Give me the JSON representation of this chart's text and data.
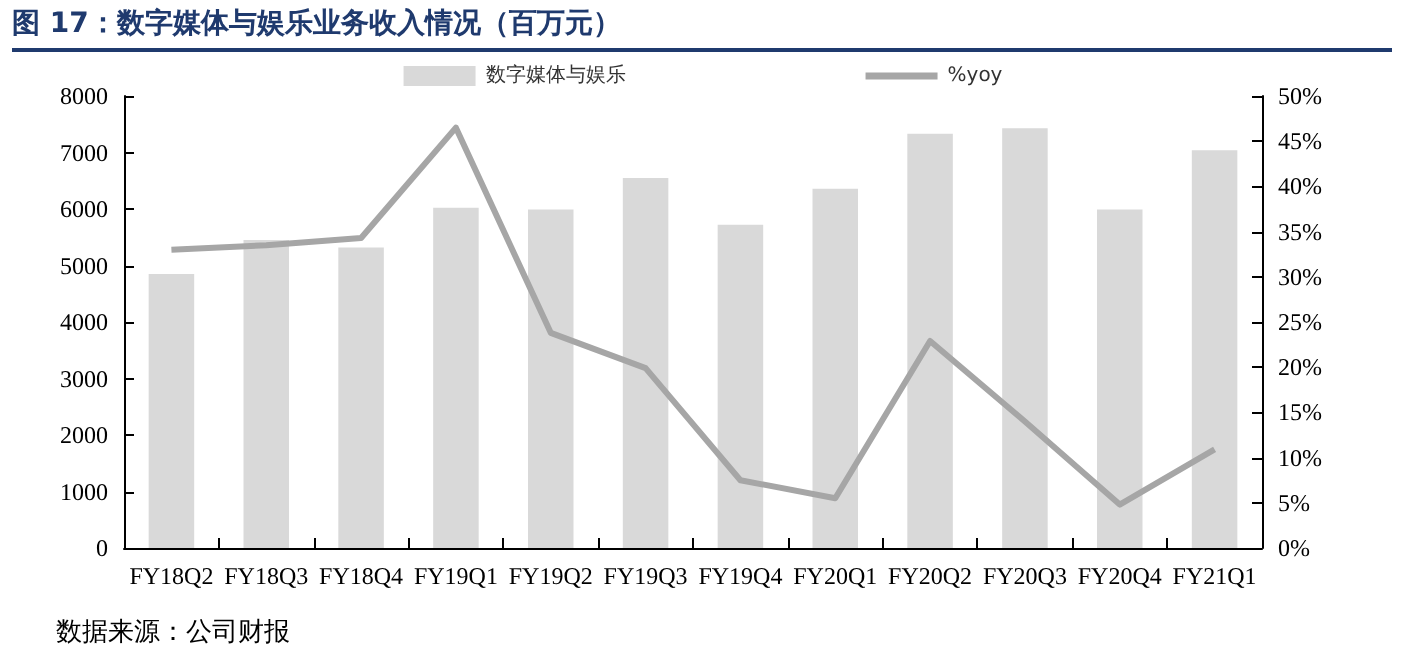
{
  "chart_data": {
    "type": "bar",
    "title": "图 17：数字媒体与娱乐业务收入情况（百万元）",
    "annotations": [
      "数据来源：公司财报"
    ],
    "categories": [
      "FY18Q2",
      "FY18Q3",
      "FY18Q4",
      "FY19Q1",
      "FY19Q2",
      "FY19Q3",
      "FY19Q4",
      "FY20Q1",
      "FY20Q2",
      "FY20Q3",
      "FY20Q4",
      "FY21Q1"
    ],
    "series": [
      {
        "name": "数字媒体与娱乐",
        "color": "#d9d9d9",
        "values": [
          4850,
          5450,
          5320,
          6020,
          5990,
          6550,
          5720,
          6360,
          7330,
          7430,
          5990,
          7040
        ]
      },
      {
        "name": "%yoy",
        "type": "line",
        "axis": "y2",
        "color": "#a6a6a6",
        "values": [
          33,
          33.5,
          34.3,
          46.5,
          23.8,
          19.9,
          7.5,
          5.5,
          22.9,
          14,
          4.8,
          10.9
        ]
      }
    ],
    "ylim": [
      0,
      8000
    ],
    "yticks": [
      0,
      1000,
      2000,
      3000,
      4000,
      5000,
      6000,
      7000,
      8000
    ],
    "y2lim": [
      0,
      50
    ],
    "y2ticks": [
      {
        "value": 0,
        "label": "0%"
      },
      {
        "value": 5,
        "label": "5%"
      },
      {
        "value": 10,
        "label": "10%"
      },
      {
        "value": 15,
        "label": "15%"
      },
      {
        "value": 20,
        "label": "20%"
      },
      {
        "value": 25,
        "label": "25%"
      },
      {
        "value": 30,
        "label": "30%"
      },
      {
        "value": 35,
        "label": "35%"
      },
      {
        "value": 40,
        "label": "40%"
      },
      {
        "value": 45,
        "label": "45%"
      },
      {
        "value": 50,
        "label": "50%"
      }
    ],
    "legend": "top",
    "grid": false,
    "marker": "none",
    "line_style": "solid"
  }
}
